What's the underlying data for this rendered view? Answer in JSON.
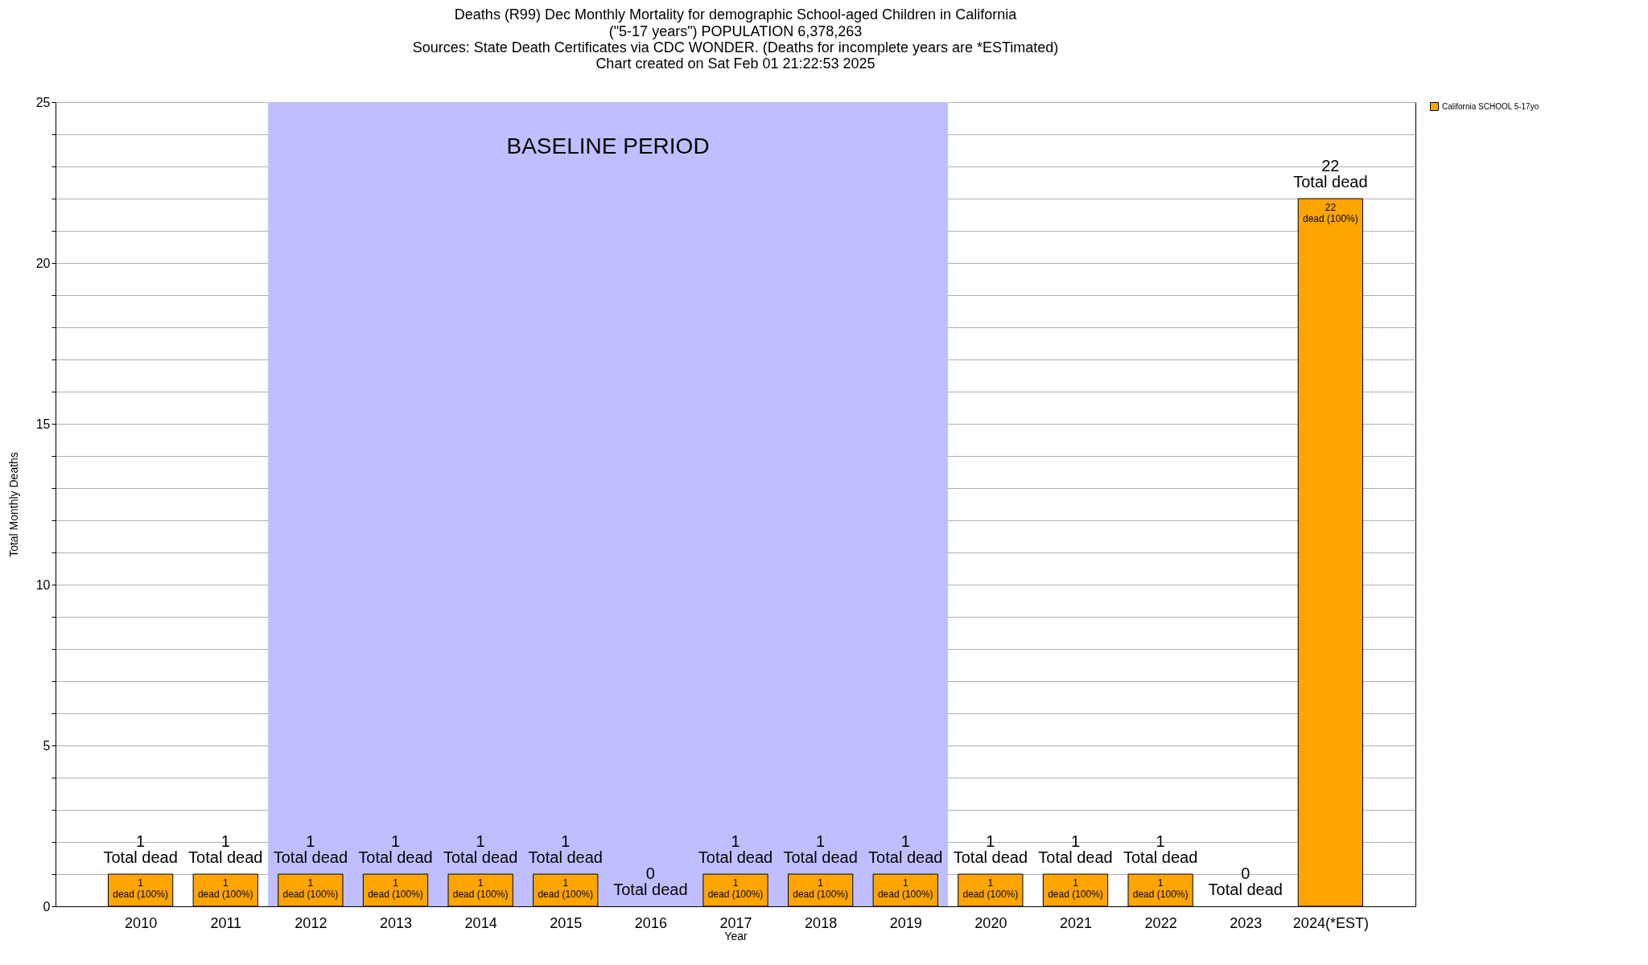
{
  "chart_data": {
    "type": "bar",
    "title": "Deaths (R99) Dec Monthly Mortality for demographic School-aged Children in California",
    "subtitle": "(\"5-17 years\") POPULATION 6,378,263",
    "xlabel": "Year",
    "ylabel": "Total Monthly Deaths",
    "categories": [
      "2010",
      "2011",
      "2012",
      "2013",
      "2014",
      "2015",
      "2016",
      "2017",
      "2018",
      "2019",
      "2020",
      "2021",
      "2022",
      "2023",
      "2024(*EST)"
    ],
    "series": [
      {
        "name": "California SCHOOL 5-17yo",
        "color": "#ffa500",
        "values": [
          1,
          1,
          1,
          1,
          1,
          1,
          0,
          1,
          1,
          1,
          1,
          1,
          1,
          0,
          22
        ]
      }
    ],
    "value_labels": [
      "1\nTotal dead",
      "1\nTotal dead",
      "1\nTotal dead",
      "1\nTotal dead",
      "1\nTotal dead",
      "1\nTotal dead",
      "0\nTotal dead",
      "1\nTotal dead",
      "1\nTotal dead",
      "1\nTotal dead",
      "1\nTotal dead",
      "1\nTotal dead",
      "1\nTotal dead",
      "0\nTotal dead",
      "22\nTotal dead"
    ],
    "ylim": [
      0,
      25
    ],
    "yticks": [
      0,
      {
        "value": 1,
        "label": null
      },
      {
        "value": 2,
        "label": null
      },
      {
        "value": 3,
        "label": null
      },
      {
        "value": 4,
        "label": null
      },
      5,
      {
        "value": 6,
        "label": null
      },
      {
        "value": 7,
        "label": null
      },
      {
        "value": 8,
        "label": null
      },
      {
        "value": 9,
        "label": null
      },
      10,
      {
        "value": 11,
        "label": null
      },
      {
        "value": 12,
        "label": null
      },
      {
        "value": 13,
        "label": null
      },
      {
        "value": 14,
        "label": null
      },
      15,
      {
        "value": 16,
        "label": null
      },
      {
        "value": 17,
        "label": null
      },
      {
        "value": 18,
        "label": null
      },
      {
        "value": 19,
        "label": null
      },
      20,
      {
        "value": 21,
        "label": null
      },
      {
        "value": 22,
        "label": null
      },
      {
        "value": 23,
        "label": null
      },
      {
        "value": 24,
        "label": null
      },
      25
    ],
    "grid": "y",
    "legend": "top right",
    "bands": [
      {
        "axis": "x",
        "from": "2012",
        "to": "2019",
        "label": "BASELINE PERIOD",
        "color": "#bfbfff"
      }
    ],
    "annotations": [
      "Sources: State Death Certificates via CDC WONDER. (Deaths for incomplete years are *ESTimated)",
      "Chart created on Sat Feb 01 21:22:53 2025",
      {
        "text": "1\ndead (100%)",
        "x": "2010",
        "y": 1
      },
      {
        "text": "1\ndead (100%)",
        "x": "2011",
        "y": 1
      },
      {
        "text": "1\ndead (100%)",
        "x": "2012",
        "y": 1
      },
      {
        "text": "1\ndead (100%)",
        "x": "2013",
        "y": 1
      },
      {
        "text": "1\ndead (100%)",
        "x": "2014",
        "y": 1
      },
      {
        "text": "1\ndead (100%)",
        "x": "2015",
        "y": 1
      },
      {
        "text": "1\ndead (100%)",
        "x": "2017",
        "y": 1
      },
      {
        "text": "1\ndead (100%)",
        "x": "2018",
        "y": 1
      },
      {
        "text": "1\ndead (100%)",
        "x": "2019",
        "y": 1
      },
      {
        "text": "1\ndead (100%)",
        "x": "2020",
        "y": 1
      },
      {
        "text": "1\ndead (100%)",
        "x": "2021",
        "y": 1
      },
      {
        "text": "1\ndead (100%)",
        "x": "2022",
        "y": 1
      },
      {
        "text": "22\ndead (100%)",
        "x": "2024(*EST)",
        "y": 22
      }
    ]
  }
}
